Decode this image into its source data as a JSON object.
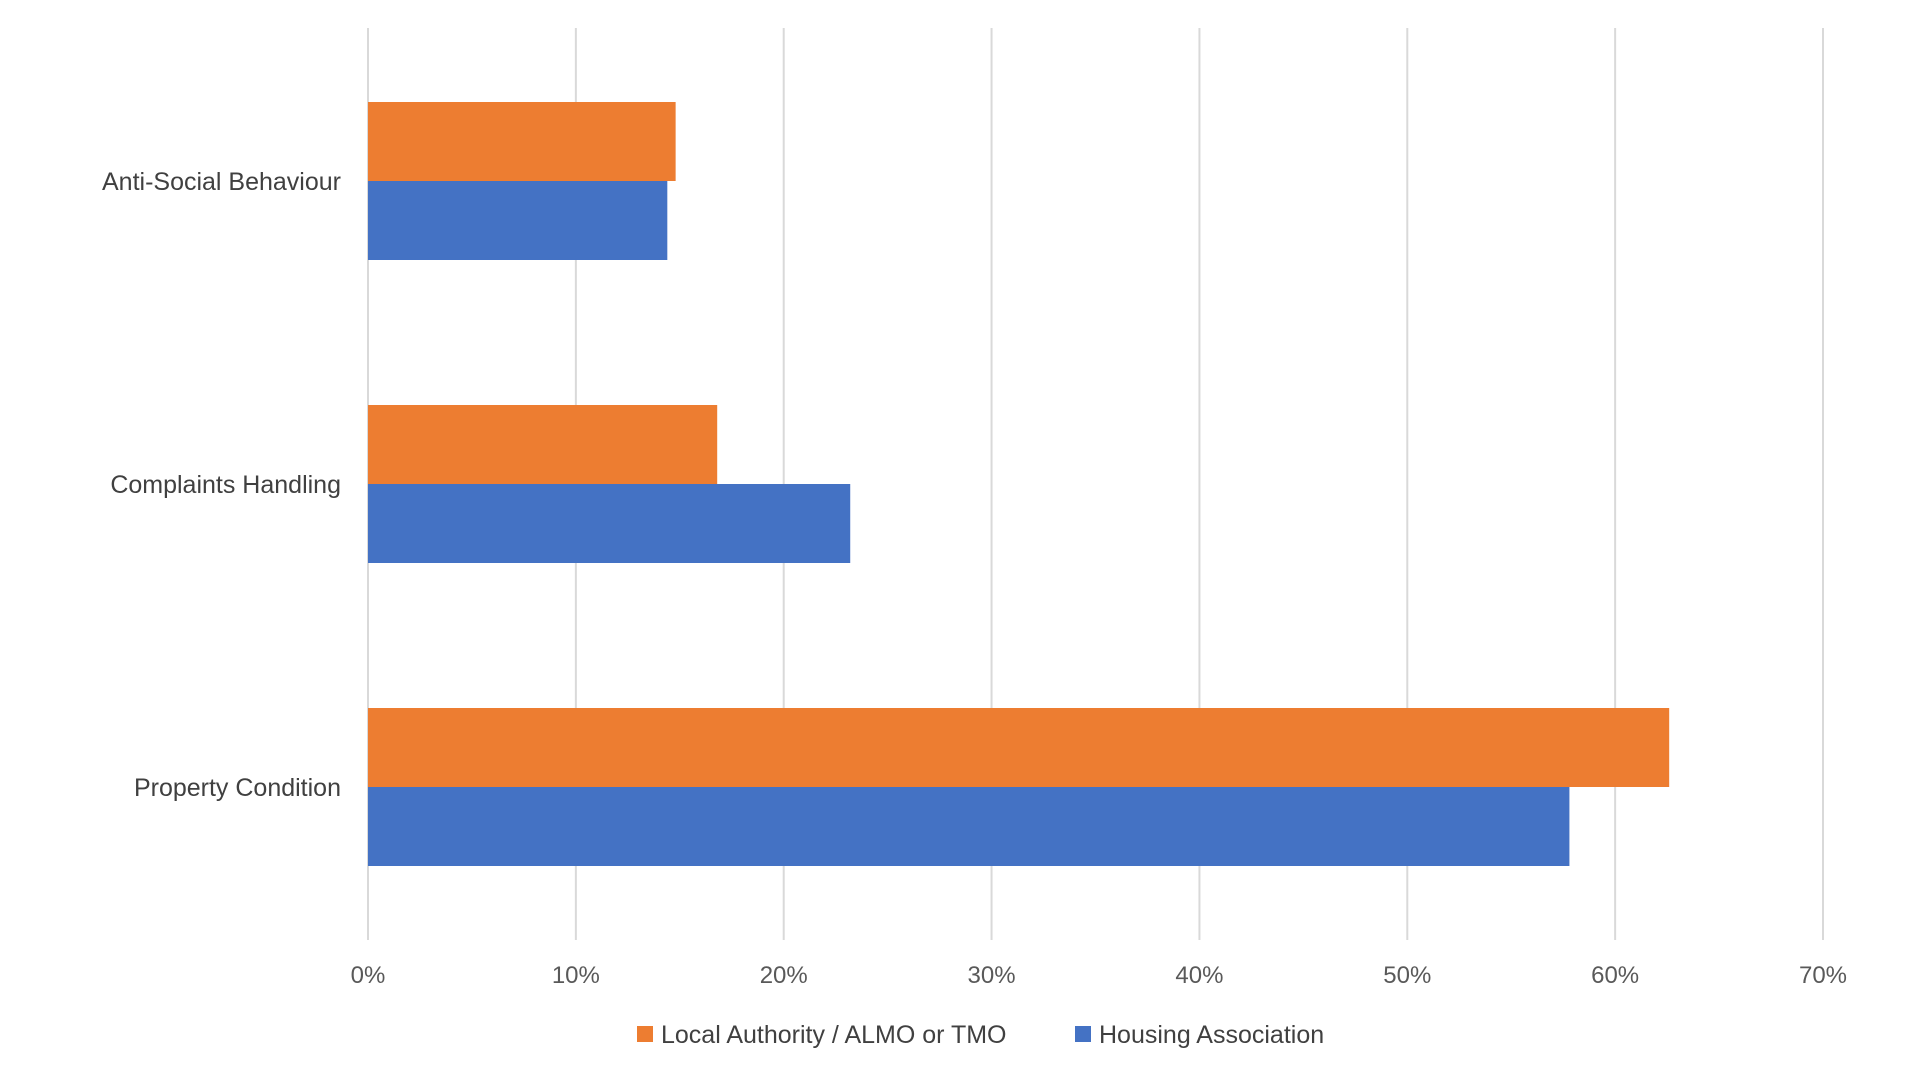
{
  "chart_data": {
    "type": "bar",
    "orientation": "horizontal",
    "title": "",
    "xlabel": "",
    "ylabel": "",
    "xlim": [
      0,
      0.7
    ],
    "x_ticks": [
      0,
      0.1,
      0.2,
      0.3,
      0.4,
      0.5,
      0.6,
      0.7
    ],
    "x_tick_labels": [
      "0%",
      "10%",
      "20%",
      "30%",
      "40%",
      "50%",
      "60%",
      "70%"
    ],
    "grid": "vertical",
    "legend_position": "bottom-center",
    "categories": [
      "Anti-Social Behaviour",
      "Complaints Handling",
      "Property Condition"
    ],
    "series": [
      {
        "name": "Local Authority / ALMO or TMO",
        "color": "#ED7D31",
        "values": [
          0.148,
          0.168,
          0.626
        ]
      },
      {
        "name": "Housing Association",
        "color": "#4472C4",
        "values": [
          0.144,
          0.232,
          0.578
        ]
      }
    ]
  }
}
